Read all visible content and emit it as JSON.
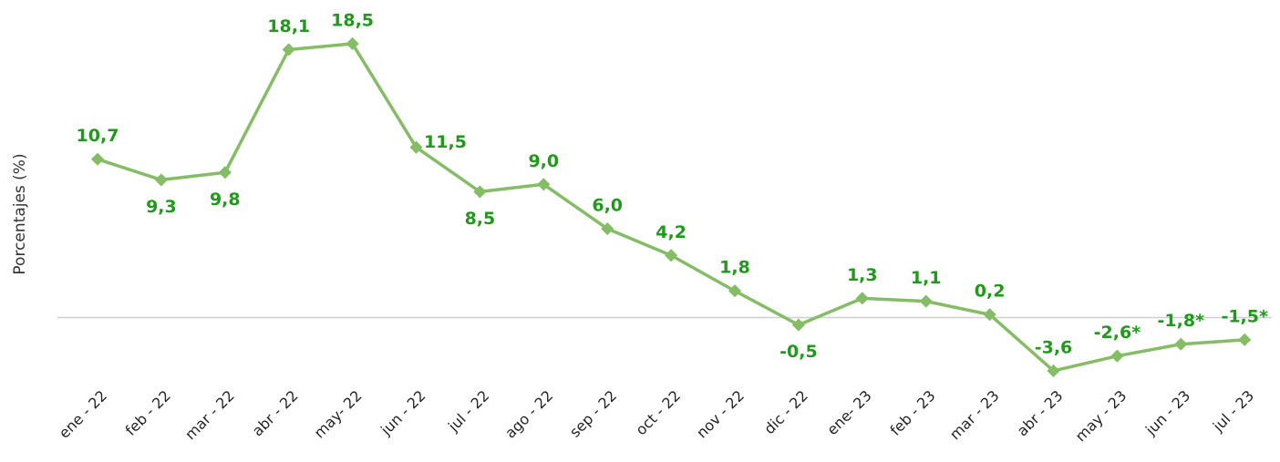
{
  "chart_data": {
    "type": "line",
    "y_label": "Porcentajes (%)",
    "categories": [
      "ene - 22",
      "feb - 22",
      "mar - 22",
      "abr - 22",
      "may- 22",
      "jun - 22",
      "jul - 22",
      "ago - 22",
      "sep - 22",
      "oct - 22",
      "nov - 22",
      "dic - 22",
      "ene- 23",
      "feb - 23",
      "mar - 23",
      "abr - 23",
      "may - 23",
      "jun - 23",
      "jul - 23"
    ],
    "values": [
      10.7,
      9.3,
      9.8,
      18.1,
      18.5,
      11.5,
      8.5,
      9.0,
      6.0,
      4.2,
      1.8,
      -0.5,
      1.3,
      1.1,
      0.2,
      -3.6,
      -2.6,
      -1.8,
      -1.5
    ],
    "value_labels": [
      "10,7",
      "9,3",
      "9,8",
      "18,1",
      "18,5",
      "11,5",
      "8,5",
      "9,0",
      "6,0",
      "4,2",
      "1,8",
      "-0,5",
      "1,3",
      "1,1",
      "0,2",
      "-3,6",
      "-2,6*",
      "-1,8*",
      "-1,5*"
    ],
    "color": "#84bd66",
    "label_color": "#1f9a1a",
    "ylim": [
      -5,
      20
    ]
  }
}
